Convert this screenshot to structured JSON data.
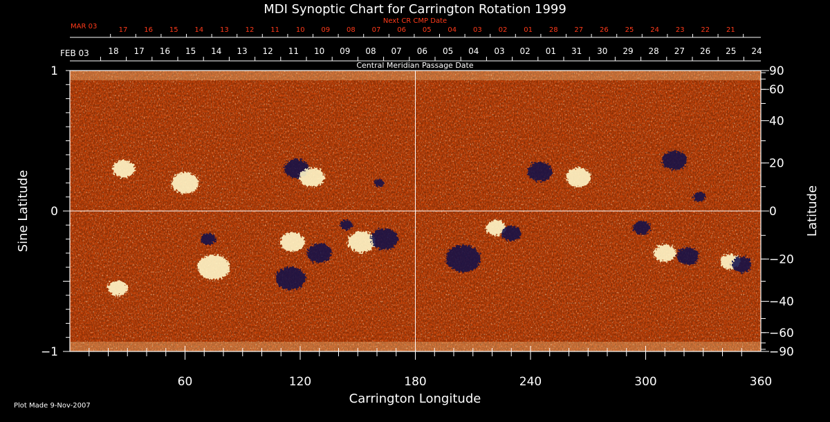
{
  "chart_data": {
    "type": "heatmap",
    "title": "MDI Synoptic Chart for Carrington Rotation 1999",
    "top_axis_red": {
      "label": "Next CR CMP Date",
      "month_label": "MAR 03",
      "ticks": [
        "17",
        "16",
        "15",
        "14",
        "13",
        "12",
        "11",
        "10",
        "09",
        "08",
        "07",
        "06",
        "05",
        "04",
        "03",
        "02",
        "01",
        "28",
        "27",
        "26",
        "25",
        "24",
        "23",
        "22",
        "21"
      ]
    },
    "top_axis_white": {
      "label": "Central Meridian Passage Date",
      "month_label": "FEB 03",
      "ticks": [
        "18",
        "17",
        "16",
        "15",
        "14",
        "13",
        "12",
        "11",
        "10",
        "09",
        "08",
        "07",
        "06",
        "05",
        "04",
        "03",
        "02",
        "01",
        "31",
        "30",
        "29",
        "28",
        "27",
        "26",
        "25",
        "24"
      ]
    },
    "xlabel": "Carrington Longitude",
    "xlim": [
      0,
      360
    ],
    "xticks": [
      60,
      120,
      180,
      240,
      300,
      360
    ],
    "xtick_labels": [
      "60",
      "120",
      "180",
      "240",
      "300",
      "360"
    ],
    "ylabel_left": "Sine Latitude",
    "ylim": [
      -1,
      1
    ],
    "yticks_left": [
      1,
      0,
      -1
    ],
    "yticks_left_labels": [
      "1",
      "0",
      "−1"
    ],
    "ylabel_right": "Latitude",
    "yticks_right": [
      90,
      60,
      40,
      20,
      0,
      -20,
      -40,
      -60,
      -90
    ],
    "yticks_right_labels": [
      "90",
      "60",
      "40",
      "20",
      "0",
      "−20",
      "−40",
      "−60",
      "−90"
    ],
    "colors": {
      "base": "#d84a0a",
      "positive": "#fff6c8",
      "negative": "#0a0a4a",
      "date_red": "#ff3a1a"
    },
    "active_regions": [
      {
        "lon": 118,
        "sinlat": 0.3,
        "sign": "negative",
        "size": 1.0
      },
      {
        "lon": 126,
        "sinlat": 0.24,
        "sign": "positive",
        "size": 1.0
      },
      {
        "lon": 161,
        "sinlat": 0.2,
        "sign": "negative",
        "size": 0.4
      },
      {
        "lon": 72,
        "sinlat": -0.2,
        "sign": "negative",
        "size": 0.6
      },
      {
        "lon": 116,
        "sinlat": -0.22,
        "sign": "positive",
        "size": 1.0
      },
      {
        "lon": 130,
        "sinlat": -0.3,
        "sign": "negative",
        "size": 1.0
      },
      {
        "lon": 152,
        "sinlat": -0.22,
        "sign": "positive",
        "size": 1.1
      },
      {
        "lon": 164,
        "sinlat": -0.2,
        "sign": "negative",
        "size": 1.1
      },
      {
        "lon": 144,
        "sinlat": -0.1,
        "sign": "negative",
        "size": 0.5
      },
      {
        "lon": 115,
        "sinlat": -0.48,
        "sign": "negative",
        "size": 1.2
      },
      {
        "lon": 222,
        "sinlat": -0.12,
        "sign": "positive",
        "size": 0.8
      },
      {
        "lon": 230,
        "sinlat": -0.16,
        "sign": "negative",
        "size": 0.8
      },
      {
        "lon": 205,
        "sinlat": -0.34,
        "sign": "negative",
        "size": 1.4
      },
      {
        "lon": 298,
        "sinlat": -0.12,
        "sign": "negative",
        "size": 0.7
      },
      {
        "lon": 310,
        "sinlat": -0.3,
        "sign": "positive",
        "size": 0.9
      },
      {
        "lon": 322,
        "sinlat": -0.32,
        "sign": "negative",
        "size": 0.9
      },
      {
        "lon": 344,
        "sinlat": -0.36,
        "sign": "positive",
        "size": 0.8
      },
      {
        "lon": 350,
        "sinlat": -0.38,
        "sign": "negative",
        "size": 0.8
      },
      {
        "lon": 328,
        "sinlat": 0.1,
        "sign": "negative",
        "size": 0.5
      },
      {
        "lon": 245,
        "sinlat": 0.28,
        "sign": "negative",
        "size": 1.0
      },
      {
        "lon": 265,
        "sinlat": 0.24,
        "sign": "positive",
        "size": 1.0
      },
      {
        "lon": 315,
        "sinlat": 0.36,
        "sign": "negative",
        "size": 1.0
      },
      {
        "lon": 60,
        "sinlat": 0.2,
        "sign": "positive",
        "size": 1.1
      },
      {
        "lon": 28,
        "sinlat": 0.3,
        "sign": "positive",
        "size": 0.9
      },
      {
        "lon": 75,
        "sinlat": -0.4,
        "sign": "positive",
        "size": 1.3
      },
      {
        "lon": 25,
        "sinlat": -0.55,
        "sign": "positive",
        "size": 0.8
      }
    ],
    "grid_lines": {
      "lon": [
        180
      ],
      "sinlat": [
        0
      ]
    }
  },
  "footer": {
    "plot_made": "Plot Made  9-Nov-2007"
  }
}
